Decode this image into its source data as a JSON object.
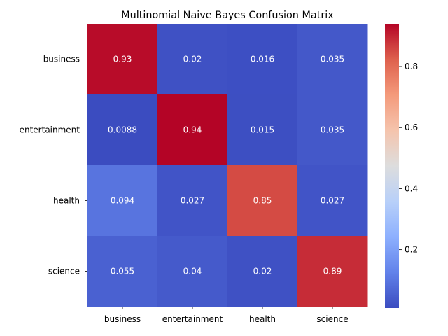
{
  "chart_data": {
    "type": "heatmap",
    "title": "Multinomial Naive Bayes Confusion Matrix",
    "xlabel": "",
    "ylabel": "",
    "x_categories": [
      "business",
      "entertainment",
      "health",
      "science"
    ],
    "y_categories": [
      "business",
      "entertainment",
      "health",
      "science"
    ],
    "values": [
      [
        0.93,
        0.02,
        0.016,
        0.035
      ],
      [
        0.0088,
        0.94,
        0.015,
        0.035
      ],
      [
        0.094,
        0.027,
        0.85,
        0.027
      ],
      [
        0.055,
        0.04,
        0.02,
        0.89
      ]
    ],
    "value_labels": [
      [
        "0.93",
        "0.02",
        "0.016",
        "0.035"
      ],
      [
        "0.0088",
        "0.94",
        "0.015",
        "0.035"
      ],
      [
        "0.094",
        "0.027",
        "0.85",
        "0.027"
      ],
      [
        "0.055",
        "0.04",
        "0.02",
        "0.89"
      ]
    ],
    "colormap": "coolwarm",
    "colorbar": {
      "range": [
        0.0088,
        0.94
      ],
      "ticks": [
        0.2,
        0.4,
        0.6,
        0.8
      ],
      "tick_labels": [
        "0.2",
        "0.4",
        "0.6",
        "0.8"
      ]
    },
    "annotation_color": "#ffffff"
  }
}
